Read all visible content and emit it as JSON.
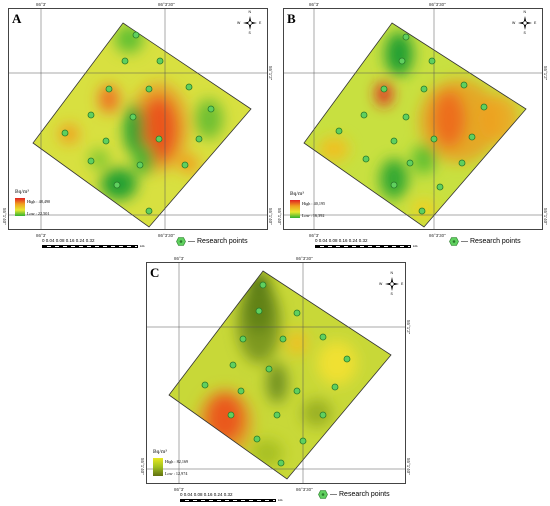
{
  "panels": [
    {
      "id": "A",
      "letter": "A",
      "legend_title": "Bq/m³",
      "legend_high": "High : 48,490",
      "legend_low": "Low : 22,501",
      "lon_top_left": "86°3'",
      "lon_top_right": "86°3'30\"",
      "lon_bottom_left": "86°3'",
      "lon_bottom_right": "86°3'30\"",
      "lat_upper": "55°1'2\"",
      "lat_lower": "55°1'40\"",
      "scale_numbers": "0  0.04 0.08    0.16     0.24     0.32",
      "scale_unit": "km",
      "research_label": "Research points"
    },
    {
      "id": "B",
      "letter": "B",
      "legend_title": "Bq/m³",
      "legend_high": "High : 40,195",
      "legend_low": "Low : 16,392",
      "lon_top_left": "86°3'",
      "lon_top_right": "86°3'30\"",
      "lon_bottom_left": "86°3'",
      "lon_bottom_right": "86°3'30\"",
      "lat_upper": "55°1'2\"",
      "lat_lower": "55°1'40\"",
      "scale_numbers": "0  0.04 0.08    0.16     0.24     0.32",
      "scale_unit": "km",
      "research_label": "Research points"
    },
    {
      "id": "C",
      "letter": "C",
      "legend_title": "Bq/m³",
      "legend_high": "High : 82,169",
      "legend_low": "Low : 12,974",
      "lon_top_left": "86°3'",
      "lon_top_right": "86°3'30\"",
      "lon_bottom_left": "86°3'",
      "lon_bottom_right": "86°3'30\"",
      "lat_upper": "55°1'2\"",
      "lat_lower": "55°1'40\"",
      "scale_numbers": "0  0.04 0.08    0.16     0.24     0.32",
      "scale_unit": "km",
      "research_label": "Research points"
    }
  ],
  "compass_letters": {
    "n": "N",
    "s": "S",
    "e": "E",
    "w": "W"
  },
  "colors": {
    "high": "#e02020",
    "mid": "#e8e830",
    "low": "#30b030",
    "point_fill": "#5fd05f",
    "point_stroke": "#2a7a2a"
  }
}
